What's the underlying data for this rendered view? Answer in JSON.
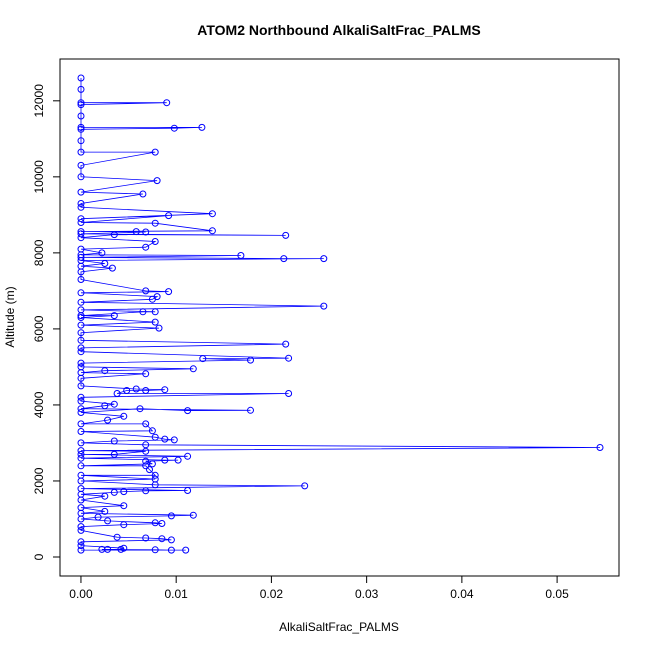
{
  "chart_data": {
    "type": "line",
    "title": "ATOM2 Northbound AlkaliSaltFrac_PALMS",
    "xlabel": "AlkaliSaltFrac_PALMS",
    "ylabel": "Altitude (m)",
    "xlim": [
      -0.0022,
      0.0565
    ],
    "ylim": [
      -500,
      13100
    ],
    "x_ticks": [
      0.0,
      0.01,
      0.02,
      0.03,
      0.04,
      0.05
    ],
    "x_tick_labels": [
      "0.00",
      "0.01",
      "0.02",
      "0.03",
      "0.04",
      "0.05"
    ],
    "y_ticks": [
      0,
      2000,
      4000,
      6000,
      8000,
      10000,
      12000
    ],
    "y_tick_labels": [
      "0",
      "2000",
      "4000",
      "6000",
      "8000",
      "10000",
      "12000"
    ],
    "grid": false,
    "line_color": "#0000ff",
    "marker": "open-circle",
    "series": [
      {
        "values": [
          [
            0.0,
            12600
          ],
          [
            0.0,
            12300
          ],
          [
            0.0,
            11950
          ],
          [
            0.009,
            11950
          ],
          [
            0.0,
            11900
          ],
          [
            0.0,
            11600
          ],
          [
            0.0,
            11300
          ],
          [
            0.0127,
            11300
          ],
          [
            0.0098,
            11280
          ],
          [
            0.0,
            11250
          ],
          [
            0.0,
            10950
          ],
          [
            0.0,
            10650
          ],
          [
            0.0078,
            10650
          ],
          [
            0.0,
            10300
          ],
          [
            0.0,
            10000
          ],
          [
            0.008,
            9900
          ],
          [
            0.0,
            9600
          ],
          [
            0.0065,
            9550
          ],
          [
            0.0,
            9300
          ],
          [
            0.0,
            9200
          ],
          [
            0.0138,
            9030
          ],
          [
            0.0,
            8900
          ],
          [
            0.0092,
            8980
          ],
          [
            0.0,
            8800
          ],
          [
            0.0078,
            8780
          ],
          [
            0.0138,
            8580
          ],
          [
            0.0,
            8560
          ],
          [
            0.0058,
            8560
          ],
          [
            0.0068,
            8550
          ],
          [
            0.0,
            8500
          ],
          [
            0.0215,
            8460
          ],
          [
            0.0035,
            8480
          ],
          [
            0.0,
            8400
          ],
          [
            0.0078,
            8300
          ],
          [
            0.0068,
            8150
          ],
          [
            0.0,
            8100
          ],
          [
            0.0022,
            8000
          ],
          [
            0.0,
            7950
          ],
          [
            0.0168,
            7930
          ],
          [
            0.0,
            7880
          ],
          [
            0.0213,
            7850
          ],
          [
            0.0255,
            7850
          ],
          [
            0.0,
            7800
          ],
          [
            0.0025,
            7720
          ],
          [
            0.0,
            7650
          ],
          [
            0.0033,
            7600
          ],
          [
            0.0,
            7500
          ],
          [
            0.0,
            7300
          ],
          [
            0.0068,
            7000
          ],
          [
            0.0092,
            6980
          ],
          [
            0.0,
            6950
          ],
          [
            0.008,
            6850
          ],
          [
            0.0075,
            6780
          ],
          [
            0.0,
            6700
          ],
          [
            0.0255,
            6600
          ],
          [
            0.0,
            6500
          ],
          [
            0.0078,
            6450
          ],
          [
            0.0065,
            6450
          ],
          [
            0.0,
            6350
          ],
          [
            0.0035,
            6350
          ],
          [
            0.0,
            6300
          ],
          [
            0.0078,
            6180
          ],
          [
            0.0,
            6100
          ],
          [
            0.0082,
            6020
          ],
          [
            0.0,
            5900
          ],
          [
            0.0,
            5700
          ],
          [
            0.0215,
            5600
          ],
          [
            0.0,
            5500
          ],
          [
            0.0,
            5400
          ],
          [
            0.0218,
            5230
          ],
          [
            0.0128,
            5220
          ],
          [
            0.0178,
            5180
          ],
          [
            0.0,
            5100
          ],
          [
            0.0,
            5000
          ],
          [
            0.0118,
            4950
          ],
          [
            0.0025,
            4900
          ],
          [
            0.0,
            4850
          ],
          [
            0.0068,
            4820
          ],
          [
            0.0,
            4700
          ],
          [
            0.0,
            4500
          ],
          [
            0.0058,
            4420
          ],
          [
            0.0088,
            4400
          ],
          [
            0.0068,
            4380
          ],
          [
            0.0048,
            4380
          ],
          [
            0.0038,
            4300
          ],
          [
            0.0218,
            4300
          ],
          [
            0.0,
            4200
          ],
          [
            0.0,
            4100
          ],
          [
            0.0035,
            4020
          ],
          [
            0.0025,
            3980
          ],
          [
            0.0,
            3900
          ],
          [
            0.0178,
            3860
          ],
          [
            0.0112,
            3850
          ],
          [
            0.0062,
            3900
          ],
          [
            0.0,
            3800
          ],
          [
            0.0045,
            3700
          ],
          [
            0.0028,
            3600
          ],
          [
            0.0,
            3500
          ],
          [
            0.0068,
            3500
          ],
          [
            0.0075,
            3320
          ],
          [
            0.0,
            3300
          ],
          [
            0.0078,
            3150
          ],
          [
            0.0088,
            3100
          ],
          [
            0.0098,
            3080
          ],
          [
            0.0035,
            3050
          ],
          [
            0.0,
            3000
          ],
          [
            0.0068,
            2950
          ],
          [
            0.0545,
            2880
          ],
          [
            0.0,
            2800
          ],
          [
            0.0068,
            2780
          ],
          [
            0.0035,
            2700
          ],
          [
            0.0,
            2700
          ],
          [
            0.0112,
            2650
          ],
          [
            0.0,
            2600
          ],
          [
            0.0088,
            2550
          ],
          [
            0.0102,
            2550
          ],
          [
            0.0068,
            2520
          ],
          [
            0.0075,
            2450
          ],
          [
            0.0,
            2400
          ],
          [
            0.0068,
            2400
          ],
          [
            0.0072,
            2300
          ],
          [
            0.0078,
            2150
          ],
          [
            0.0,
            2150
          ],
          [
            0.0078,
            2050
          ],
          [
            0.0,
            2000
          ],
          [
            0.0078,
            1900
          ],
          [
            0.0235,
            1870
          ],
          [
            0.0,
            1800
          ],
          [
            0.0112,
            1750
          ],
          [
            0.0068,
            1740
          ],
          [
            0.0045,
            1720
          ],
          [
            0.0035,
            1700
          ],
          [
            0.0,
            1650
          ],
          [
            0.0025,
            1600
          ],
          [
            0.0,
            1500
          ],
          [
            0.0045,
            1350
          ],
          [
            0.0,
            1300
          ],
          [
            0.0025,
            1200
          ],
          [
            0.0,
            1150
          ],
          [
            0.0118,
            1100
          ],
          [
            0.0095,
            1080
          ],
          [
            0.0018,
            1050
          ],
          [
            0.0,
            1000
          ],
          [
            0.0028,
            950
          ],
          [
            0.0078,
            900
          ],
          [
            0.0085,
            880
          ],
          [
            0.0045,
            850
          ],
          [
            0.0,
            800
          ],
          [
            0.0,
            700
          ],
          [
            0.0038,
            520
          ],
          [
            0.0068,
            500
          ],
          [
            0.0085,
            480
          ],
          [
            0.0095,
            450
          ],
          [
            0.0,
            400
          ],
          [
            0.0,
            300
          ],
          [
            0.0045,
            230
          ],
          [
            0.0042,
            200
          ],
          [
            0.0028,
            200
          ],
          [
            0.0022,
            200
          ],
          [
            0.0078,
            190
          ],
          [
            0.0095,
            180
          ],
          [
            0.011,
            180
          ],
          [
            0.0,
            180
          ]
        ]
      }
    ]
  }
}
